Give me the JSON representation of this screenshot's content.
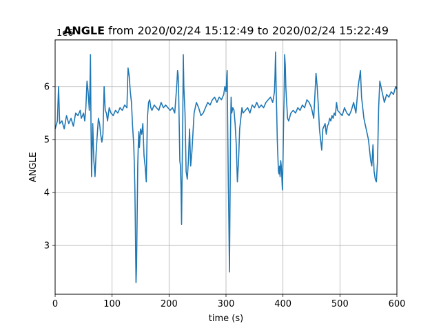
{
  "chart_data": {
    "type": "line",
    "title": {
      "variable": "ANGLE",
      "range_text": " from 2020/02/24 15:12:49 to 2020/02/24 15:22:49"
    },
    "xlabel": "time (s)",
    "ylabel": "ANGLE",
    "offset_label": "1e6",
    "xlim": [
      0,
      600
    ],
    "ylim": [
      2.08,
      6.88
    ],
    "xticks": [
      0,
      100,
      200,
      300,
      400,
      500,
      600
    ],
    "yticks": [
      3,
      4,
      5,
      6
    ],
    "grid": true,
    "series": [
      {
        "color": "#1f77b4",
        "x": [
          0,
          4,
          6,
          8,
          12,
          16,
          20,
          24,
          28,
          32,
          36,
          40,
          44,
          46,
          48,
          50,
          52,
          54,
          56,
          58,
          60,
          61,
          62,
          63,
          64,
          65,
          66,
          68,
          70,
          72,
          74,
          76,
          78,
          80,
          82,
          84,
          86,
          88,
          90,
          92,
          95,
          98,
          102,
          106,
          110,
          114,
          118,
          122,
          126,
          128,
          130,
          132,
          134,
          136,
          138,
          139,
          140,
          141,
          142,
          143,
          144,
          145,
          146,
          147,
          148,
          150,
          152,
          154,
          156,
          158,
          160,
          162,
          164,
          166,
          168,
          170,
          174,
          178,
          182,
          186,
          190,
          194,
          198,
          202,
          206,
          210,
          212,
          214,
          215,
          216,
          217,
          218,
          219,
          220,
          221,
          222,
          223,
          224,
          225,
          226,
          228,
          230,
          232,
          234,
          236,
          238,
          240,
          244,
          248,
          252,
          256,
          260,
          264,
          268,
          272,
          276,
          280,
          284,
          288,
          292,
          296,
          298,
          300,
          302,
          303,
          304,
          305,
          306,
          307,
          308,
          309,
          310,
          312,
          314,
          316,
          318,
          320,
          322,
          324,
          326,
          328,
          330,
          334,
          338,
          342,
          346,
          350,
          354,
          358,
          362,
          366,
          370,
          374,
          378,
          382,
          385,
          386,
          387,
          388,
          389,
          390,
          391,
          392,
          393,
          394,
          395,
          396,
          397,
          398,
          399,
          400,
          401,
          402,
          403,
          404,
          405,
          406,
          408,
          410,
          414,
          418,
          422,
          426,
          430,
          434,
          438,
          442,
          446,
          450,
          454,
          458,
          460,
          462,
          464,
          466,
          468,
          470,
          472,
          474,
          476,
          478,
          480,
          482,
          484,
          486,
          488,
          490,
          492,
          494,
          496,
          500,
          504,
          508,
          512,
          516,
          520,
          524,
          528,
          532,
          536,
          538,
          540,
          542,
          544,
          546,
          548,
          550,
          552,
          554,
          556,
          558,
          560,
          562,
          564,
          566,
          568,
          570,
          574,
          578,
          582,
          586,
          590,
          594,
          598,
          600
        ],
        "y": [
          5.2,
          5.35,
          6.0,
          5.3,
          5.35,
          5.2,
          5.45,
          5.3,
          5.4,
          5.25,
          5.5,
          5.45,
          5.55,
          5.4,
          5.45,
          5.5,
          5.35,
          5.6,
          6.1,
          5.9,
          5.55,
          5.9,
          6.6,
          5.2,
          4.3,
          4.8,
          5.3,
          4.6,
          4.3,
          4.75,
          5.1,
          5.4,
          5.3,
          5.1,
          4.95,
          5.1,
          6.0,
          5.55,
          5.5,
          5.35,
          5.6,
          5.5,
          5.45,
          5.55,
          5.5,
          5.6,
          5.55,
          5.65,
          5.6,
          6.35,
          6.2,
          5.9,
          5.7,
          5.25,
          4.9,
          4.55,
          4.1,
          3.2,
          2.3,
          2.6,
          3.5,
          4.5,
          4.9,
          5.15,
          4.85,
          5.2,
          5.1,
          5.3,
          4.7,
          4.5,
          4.2,
          5.4,
          5.7,
          5.75,
          5.6,
          5.55,
          5.65,
          5.6,
          5.55,
          5.7,
          5.6,
          5.65,
          5.6,
          5.55,
          5.6,
          5.5,
          5.8,
          6.1,
          6.3,
          6.2,
          5.8,
          5.2,
          4.6,
          4.5,
          4.1,
          3.4,
          4.4,
          5.3,
          6.6,
          6.0,
          5.5,
          4.4,
          4.25,
          4.6,
          5.2,
          4.5,
          4.75,
          5.5,
          5.7,
          5.6,
          5.45,
          5.5,
          5.6,
          5.7,
          5.65,
          5.75,
          5.8,
          5.7,
          5.8,
          5.75,
          5.85,
          6.0,
          5.9,
          6.3,
          5.2,
          4.2,
          3.5,
          2.5,
          3.8,
          5.2,
          5.8,
          5.5,
          5.6,
          5.55,
          5.3,
          4.9,
          4.2,
          4.6,
          5.2,
          5.4,
          5.6,
          5.5,
          5.55,
          5.6,
          5.5,
          5.65,
          5.6,
          5.7,
          5.6,
          5.65,
          5.6,
          5.7,
          5.75,
          5.8,
          5.7,
          5.9,
          6.2,
          6.65,
          6.0,
          5.5,
          5.0,
          4.7,
          4.4,
          4.35,
          4.5,
          4.3,
          4.6,
          4.5,
          4.3,
          4.05,
          4.6,
          5.3,
          5.8,
          6.6,
          6.4,
          6.0,
          5.8,
          5.4,
          5.35,
          5.5,
          5.55,
          5.5,
          5.6,
          5.55,
          5.65,
          5.6,
          5.75,
          5.7,
          5.6,
          5.4,
          6.25,
          6.0,
          5.65,
          5.2,
          5.0,
          4.8,
          5.2,
          5.25,
          5.3,
          5.1,
          5.25,
          5.3,
          5.4,
          5.35,
          5.45,
          5.4,
          5.5,
          5.45,
          5.7,
          5.55,
          5.5,
          5.45,
          5.6,
          5.5,
          5.45,
          5.55,
          5.7,
          5.5,
          6.0,
          6.3,
          5.8,
          5.6,
          5.4,
          5.3,
          5.2,
          5.1,
          5.0,
          4.8,
          4.6,
          4.5,
          4.9,
          4.4,
          4.25,
          4.2,
          4.6,
          5.6,
          6.1,
          5.9,
          5.7,
          5.85,
          5.8,
          5.9,
          5.85,
          6.0,
          5.95
        ]
      }
    ]
  }
}
